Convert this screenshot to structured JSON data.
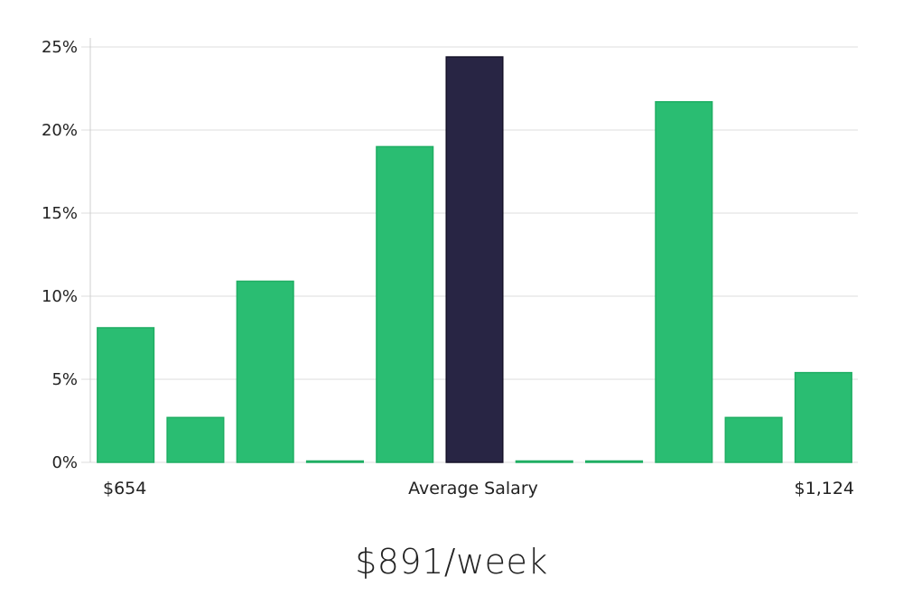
{
  "headline": "$891/week",
  "chart_data": {
    "type": "bar",
    "title": "",
    "xlabel": "",
    "ylabel": "",
    "ylim": [
      0,
      25
    ],
    "yticks": [
      0,
      5,
      10,
      15,
      20,
      25
    ],
    "ytick_labels": [
      "0%",
      "5%",
      "10%",
      "15%",
      "20%",
      "25%"
    ],
    "x_labels": {
      "left": "$654",
      "center": "Average Salary",
      "right": "$1,124"
    },
    "values": [
      8.1,
      2.7,
      10.9,
      0.0,
      19.0,
      24.4,
      0.0,
      0.0,
      21.7,
      2.7,
      5.4
    ],
    "highlight_index": 5,
    "grid": true,
    "colors": {
      "bar": "#2abd72",
      "bar_stroke": "#1fae63",
      "highlight": "#282544",
      "highlight_stroke": "#151229",
      "grid": "#dcdcdc"
    }
  }
}
